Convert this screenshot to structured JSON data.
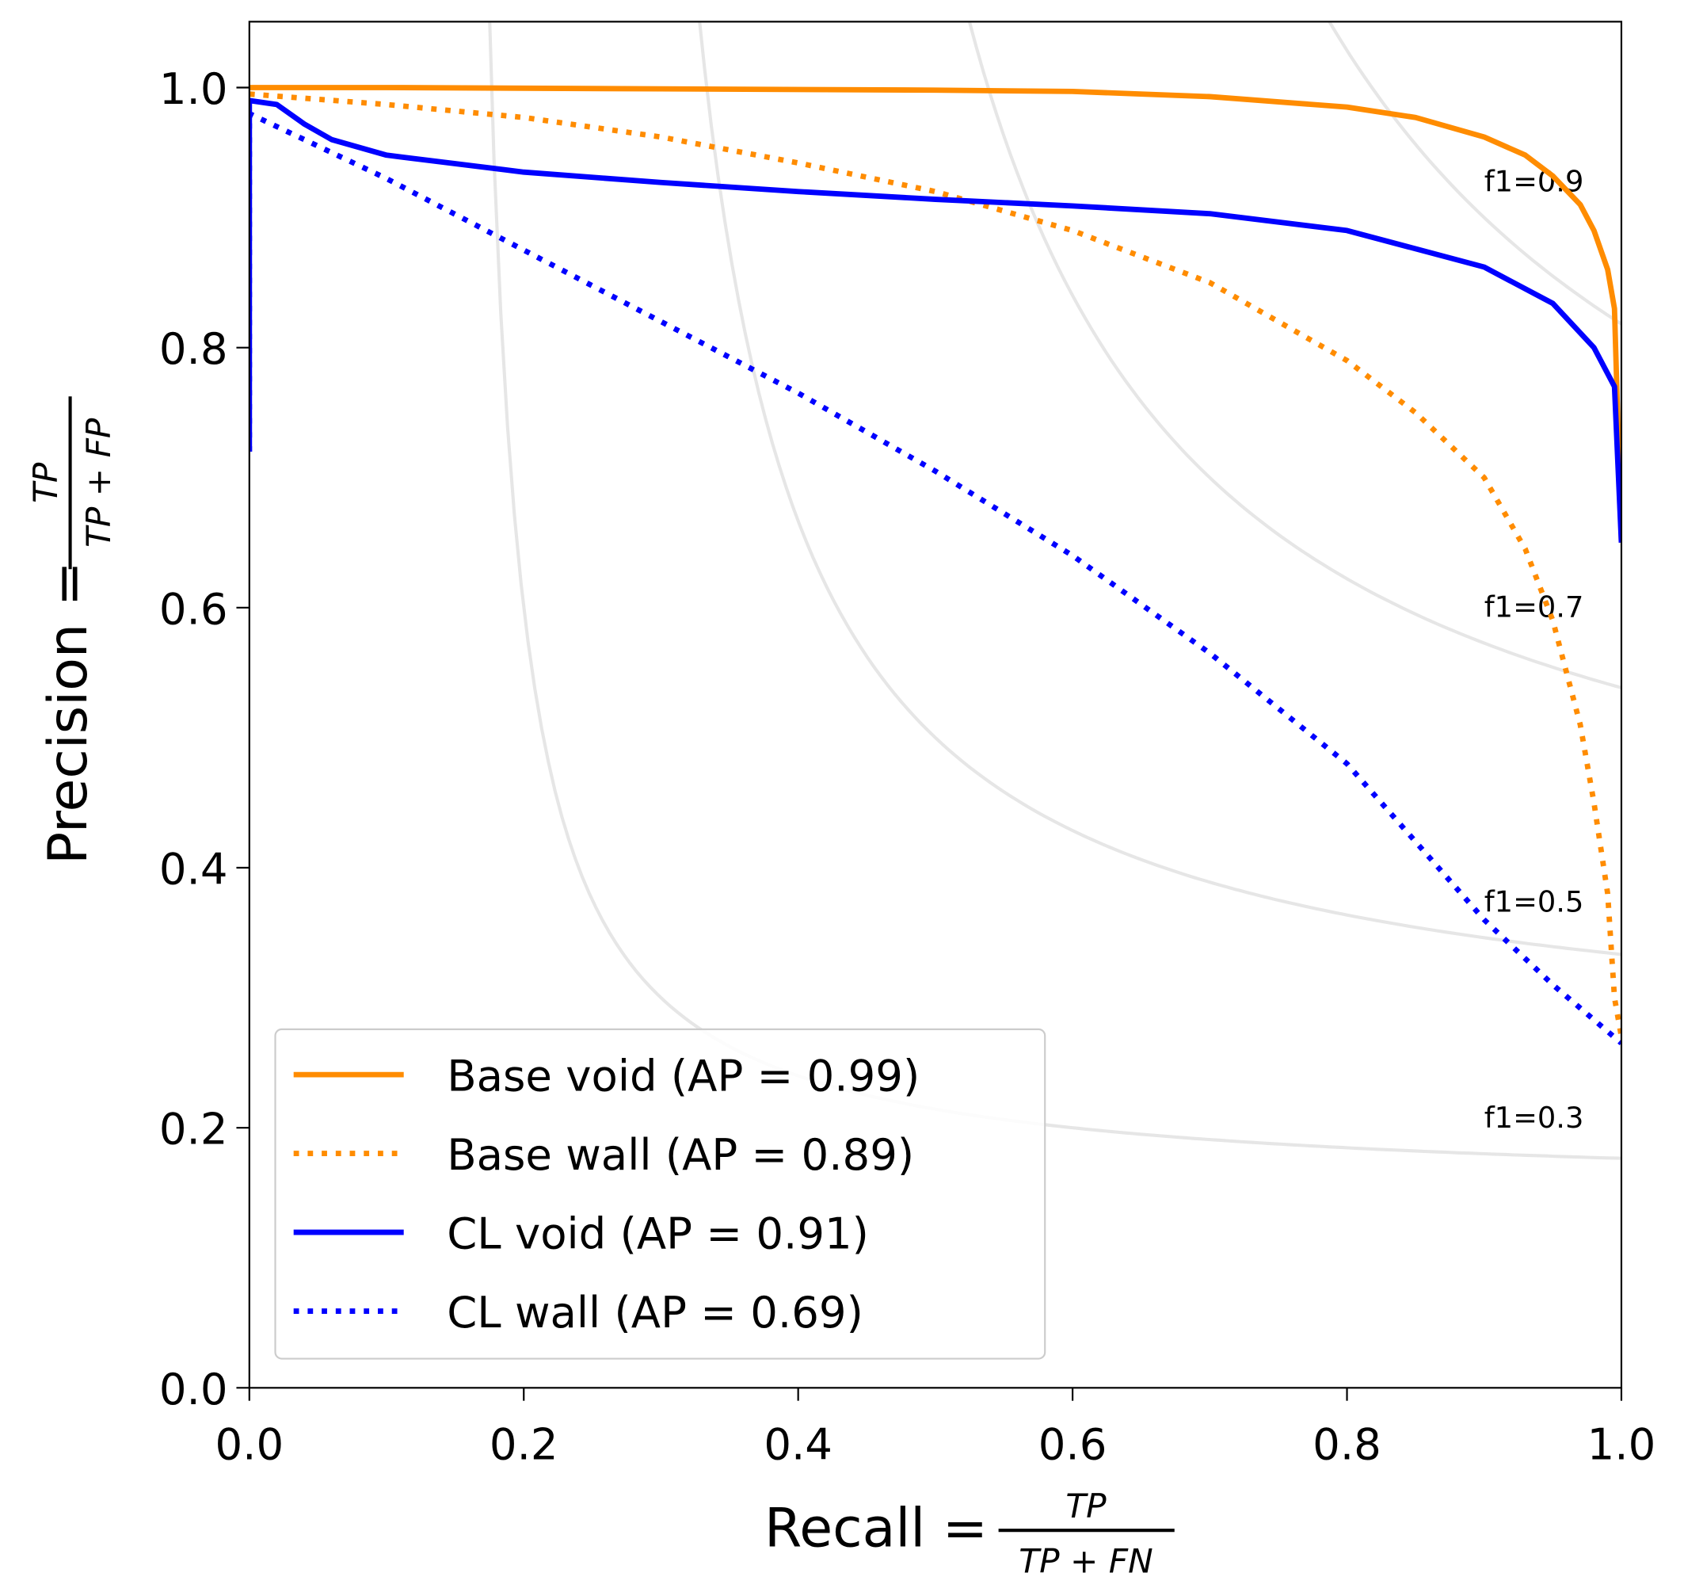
{
  "chart_data": {
    "type": "line",
    "title": "",
    "xlabel": "Recall = TP / (TP + FN)",
    "ylabel": "Precision = TP / (TP + FP)",
    "xlabel_parts": {
      "word": "Recall =",
      "num": "TP",
      "den": "TP + FN"
    },
    "ylabel_parts": {
      "word": "Precision =",
      "num": "TP",
      "den": "TP + FP"
    },
    "xlim": [
      0,
      1.0
    ],
    "ylim": [
      0,
      1.05
    ],
    "xticks": [
      "0.0",
      "0.2",
      "0.4",
      "0.6",
      "0.8",
      "1.0"
    ],
    "yticks": [
      "0.0",
      "0.2",
      "0.4",
      "0.6",
      "0.8",
      "1.0"
    ],
    "grid": false,
    "legend_position": "lower-left",
    "iso_f1": [
      {
        "f": 0.3,
        "label": "f1=0.3"
      },
      {
        "f": 0.5,
        "label": "f1=0.5"
      },
      {
        "f": 0.7,
        "label": "f1=0.7"
      },
      {
        "f": 0.9,
        "label": "f1=0.9"
      }
    ],
    "series": [
      {
        "name": "Base void (AP = 0.99)",
        "color": "#ff8c00",
        "style": "solid",
        "x": [
          0,
          0.1,
          0.3,
          0.5,
          0.6,
          0.7,
          0.8,
          0.85,
          0.9,
          0.93,
          0.95,
          0.97,
          0.98,
          0.99,
          0.995,
          1.0
        ],
        "y": [
          1.0,
          1.0,
          0.999,
          0.998,
          0.997,
          0.993,
          0.985,
          0.977,
          0.962,
          0.948,
          0.932,
          0.91,
          0.89,
          0.86,
          0.83,
          0.65
        ]
      },
      {
        "name": "Base wall (AP = 0.89)",
        "color": "#ff8c00",
        "style": "dotted",
        "x": [
          0,
          0.1,
          0.2,
          0.3,
          0.4,
          0.5,
          0.6,
          0.7,
          0.8,
          0.85,
          0.9,
          0.93,
          0.95,
          0.97,
          0.98,
          0.99,
          0.995,
          1.0
        ],
        "y": [
          0.995,
          0.987,
          0.977,
          0.962,
          0.942,
          0.92,
          0.89,
          0.85,
          0.79,
          0.75,
          0.7,
          0.645,
          0.59,
          0.51,
          0.45,
          0.38,
          0.3,
          0.27
        ]
      },
      {
        "name": "CL void (AP = 0.91)",
        "color": "#0000ff",
        "style": "solid",
        "x": [
          0,
          0,
          0.02,
          0.04,
          0.06,
          0.1,
          0.2,
          0.3,
          0.4,
          0.5,
          0.6,
          0.7,
          0.8,
          0.9,
          0.95,
          0.98,
          0.995,
          1.0
        ],
        "y": [
          0.72,
          0.99,
          0.987,
          0.972,
          0.96,
          0.948,
          0.935,
          0.927,
          0.92,
          0.914,
          0.909,
          0.903,
          0.89,
          0.862,
          0.834,
          0.8,
          0.77,
          0.65
        ]
      },
      {
        "name": "CL wall (AP = 0.69)",
        "color": "#0000ff",
        "style": "dotted",
        "x": [
          0,
          0,
          0.1,
          0.2,
          0.3,
          0.4,
          0.5,
          0.6,
          0.7,
          0.8,
          0.9,
          0.95,
          1.0
        ],
        "y": [
          0.72,
          0.98,
          0.93,
          0.875,
          0.82,
          0.765,
          0.705,
          0.64,
          0.565,
          0.48,
          0.36,
          0.31,
          0.265
        ]
      }
    ]
  }
}
